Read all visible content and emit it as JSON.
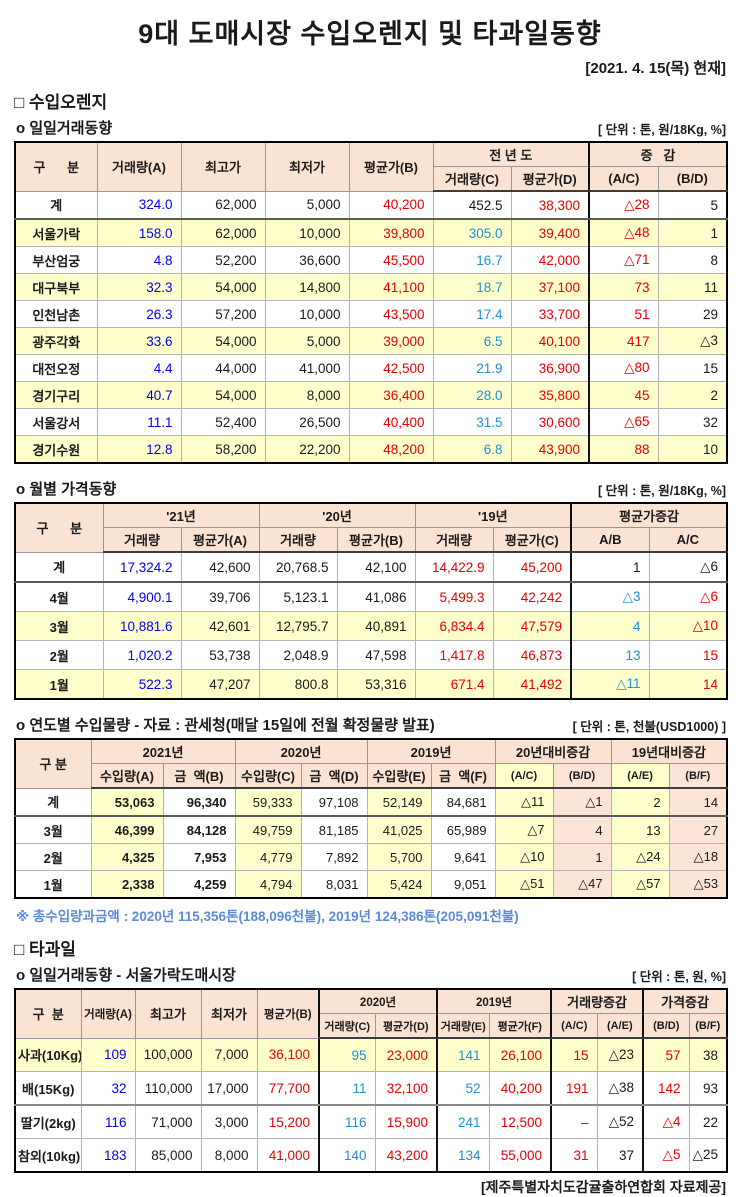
{
  "page": {
    "title": "9대 도매시장 수입오렌지 및 타과일동향",
    "date_note": "[2021. 4.  15(목) 현재]",
    "footer": "[제주특별자치도감귤출하연합회 자료제공]"
  },
  "colors": {
    "accent_blue": "#0000f0",
    "accent_red": "#e60000",
    "accent_teal": "#2090d0",
    "note_blue": "#5b8bd5",
    "header_bg": "#fbe3d3",
    "highlight_bg": "#ffffcc",
    "pink_bg": "#fce4d6"
  },
  "sections": {
    "orange": {
      "title": "□ 수입오렌지"
    },
    "other_fruit": {
      "title": "□ 타과일"
    },
    "daily": {
      "label": "o  일일거래동향",
      "unit": "[ 단위 : 톤, 원/18Kg, %]"
    },
    "monthly": {
      "label": "o  월별 가격동향",
      "unit": "[ 단위 : 톤, 원/18Kg, %]"
    },
    "yearly": {
      "label": "o  연도별 수입물량 - 자료 : 관세청(매달 15일에 전월 확정물량 발표)",
      "unit": "[ 단위 : 톤, 천불(USD1000) ]"
    },
    "yearly_note": "※ 총수입량과금액 : 2020년 115,356톤(188,096천불),  2019년 124,386톤(205,091천불)",
    "other_daily": {
      "label": "o  일일거래동향 - 서울가락도매시장",
      "unit": "[ 단위 : 톤, 원, %]"
    }
  },
  "tables": {
    "t1": {
      "headers": {
        "gubun": "구      분",
        "a": "거래량(A)",
        "high": "최고가",
        "low": "최저가",
        "avg_b": "평균가(B)",
        "prev_year": "전 년 도",
        "prev_qty": "거래량(C)",
        "prev_avg": "평균가(D)",
        "chg": "증   감",
        "ac": "(A/C)",
        "bd": "(B/D)"
      },
      "col_colors": [
        null,
        "#0000f0",
        null,
        null,
        "#e60000",
        "#2090d0",
        "#e60000",
        "#e60000",
        null
      ],
      "rows": [
        {
          "hl": false,
          "cells": [
            "계",
            "324.0",
            "62,000",
            "5,000",
            "40,200",
            "452.5",
            "38,300",
            "△28",
            "5"
          ],
          "colors": {
            "5": "#1a1a1a"
          }
        },
        {
          "hl": true,
          "cells": [
            "서울가락",
            "158.0",
            "62,000",
            "10,000",
            "39,800",
            "305.0",
            "39,400",
            "△48",
            "1"
          ]
        },
        {
          "hl": false,
          "cells": [
            "부산엄궁",
            "4.8",
            "52,200",
            "36,600",
            "45,500",
            "16.7",
            "42,000",
            "△71",
            "8"
          ]
        },
        {
          "hl": true,
          "cells": [
            "대구북부",
            "32.3",
            "54,000",
            "14,800",
            "41,100",
            "18.7",
            "37,100",
            "73",
            "11"
          ]
        },
        {
          "hl": false,
          "cells": [
            "인천남촌",
            "26.3",
            "57,200",
            "10,000",
            "43,500",
            "17.4",
            "33,700",
            "51",
            "29"
          ]
        },
        {
          "hl": true,
          "cells": [
            "광주각화",
            "33.6",
            "54,000",
            "5,000",
            "39,000",
            "6.5",
            "40,100",
            "417",
            "△3"
          ]
        },
        {
          "hl": false,
          "cells": [
            "대전오정",
            "4.4",
            "44,000",
            "41,000",
            "42,500",
            "21.9",
            "36,900",
            "△80",
            "15"
          ]
        },
        {
          "hl": true,
          "cells": [
            "경기구리",
            "40.7",
            "54,000",
            "8,000",
            "36,400",
            "28.0",
            "35,800",
            "45",
            "2"
          ]
        },
        {
          "hl": false,
          "cells": [
            "서울강서",
            "11.1",
            "52,400",
            "26,500",
            "40,400",
            "31.5",
            "30,600",
            "△65",
            "32"
          ]
        },
        {
          "hl": true,
          "cells": [
            "경기수원",
            "12.8",
            "58,200",
            "22,200",
            "48,200",
            "6.8",
            "43,900",
            "88",
            "10"
          ]
        }
      ]
    },
    "t2": {
      "headers": {
        "gubun": "구      분",
        "y21": "'21년",
        "y20": "'20년",
        "y19": "'19년",
        "qty": "거래량",
        "avg_a": "평균가(A)",
        "avg_b": "평균가(B)",
        "avg_c": "평균가(C)",
        "chg": "평균가증감",
        "ab": "A/B",
        "ac": "A/C"
      },
      "col_colors": [
        null,
        "#0000f0",
        null,
        null,
        null,
        "#e60000",
        "#e60000",
        "#2090d0",
        "#e60000"
      ],
      "rows": [
        {
          "hl": false,
          "cells": [
            "계",
            "17,324.2",
            "42,600",
            "20,768.5",
            "42,100",
            "14,422.9",
            "45,200",
            "1",
            "△6"
          ],
          "colors": {
            "7": "#1a1a1a",
            "8": "#1a1a1a"
          }
        },
        {
          "hl": false,
          "cells": [
            "4월",
            "4,900.1",
            "39,706",
            "5,123.1",
            "41,086",
            "5,499.3",
            "42,242",
            "△3",
            "△6"
          ]
        },
        {
          "hl": true,
          "cells": [
            "3월",
            "10,881.6",
            "42,601",
            "12,795.7",
            "40,891",
            "6,834.4",
            "47,579",
            "4",
            "△10"
          ]
        },
        {
          "hl": false,
          "cells": [
            "2월",
            "1,020.2",
            "53,738",
            "2,048.9",
            "47,598",
            "1,417.8",
            "46,873",
            "13",
            "15"
          ]
        },
        {
          "hl": true,
          "cells": [
            "1월",
            "522.3",
            "47,207",
            "800.8",
            "53,316",
            "671.4",
            "41,492",
            "△11",
            "14"
          ]
        }
      ]
    },
    "t3": {
      "headers": {
        "gubun": "구 분",
        "y2021": "2021년",
        "y2020": "2020년",
        "y2019": "2019년",
        "qty_a": "수입량(A)",
        "amt_b": "금  액(B)",
        "qty_c": "수입량(C)",
        "amt_d": "금  액(D)",
        "qty_e": "수입량(E)",
        "amt_f": "금  액(F)",
        "chg20": "20년대비증감",
        "chg19": "19년대비증감",
        "ac": "(A/C)",
        "bd": "(B/D)",
        "ae": "(A/E)",
        "bf": "(B/F)"
      },
      "col_colors": [
        null,
        null,
        null,
        null,
        null,
        null,
        null,
        null,
        null,
        null,
        null
      ],
      "col_bg": [
        null,
        "#ffffcc",
        null,
        "#ffffcc",
        null,
        "#ffffcc",
        null,
        "#ffffcc",
        "#fce4d6",
        "#ffffcc",
        "#fce4d6"
      ],
      "bold_cols": [
        0,
        1,
        2
      ],
      "rows": [
        {
          "hl": false,
          "cells": [
            "계",
            "53,063",
            "96,340",
            "59,333",
            "97,108",
            "52,149",
            "84,681",
            "△11",
            "△1",
            "2",
            "14"
          ]
        },
        {
          "hl": false,
          "cells": [
            "3월",
            "46,399",
            "84,128",
            "49,759",
            "81,185",
            "41,025",
            "65,989",
            "△7",
            "4",
            "13",
            "27"
          ]
        },
        {
          "hl": false,
          "cells": [
            "2월",
            "4,325",
            "7,953",
            "4,779",
            "7,892",
            "5,700",
            "9,641",
            "△10",
            "1",
            "△24",
            "△18"
          ]
        },
        {
          "hl": false,
          "cells": [
            "1월",
            "2,338",
            "4,259",
            "4,794",
            "8,031",
            "5,424",
            "9,051",
            "△51",
            "△47",
            "△57",
            "△53"
          ]
        }
      ]
    },
    "t4": {
      "headers": {
        "gubun": "구  분",
        "a": "거래량(A)",
        "high": "최고가",
        "low": "최저가",
        "avg_b": "평균가(B)",
        "y2020": "2020년",
        "y2019": "2019년",
        "qty_c": "거래량(C)",
        "avg_d": "평균가(D)",
        "qty_e": "거래량(E)",
        "avg_f": "평균가(F)",
        "qty_chg": "거래량증감",
        "price_chg": "가격증감",
        "ac": "(A/C)",
        "ae": "(A/E)",
        "bd": "(B/D)",
        "bf": "(B/F)"
      },
      "col_colors": [
        null,
        "#0000f0",
        null,
        null,
        "#e60000",
        "#2090d0",
        "#e60000",
        "#2090d0",
        "#e60000",
        "#e60000",
        null,
        "#e60000",
        null
      ],
      "rows": [
        {
          "hl": true,
          "cells": [
            "사과(10Kg)",
            "109",
            "100,000",
            "7,000",
            "36,100",
            "95",
            "23,000",
            "141",
            "26,100",
            "15",
            "△23",
            "57",
            "38"
          ]
        },
        {
          "hl": false,
          "cells": [
            "배(15Kg)",
            "32",
            "110,000",
            "17,000",
            "77,700",
            "11",
            "32,100",
            "52",
            "40,200",
            "191",
            "△38",
            "142",
            "93"
          ]
        },
        {
          "hl": false,
          "cells": [
            "딸기(2kg)",
            "116",
            "71,000",
            "3,000",
            "15,200",
            "116",
            "15,900",
            "241",
            "12,500",
            "–",
            "△52",
            "△4",
            "22"
          ]
        },
        {
          "hl": false,
          "cells": [
            "참외(10kg)",
            "183",
            "85,000",
            "8,000",
            "41,000",
            "140",
            "43,200",
            "134",
            "55,000",
            "31",
            "37",
            "△5",
            "△25"
          ]
        }
      ]
    }
  }
}
